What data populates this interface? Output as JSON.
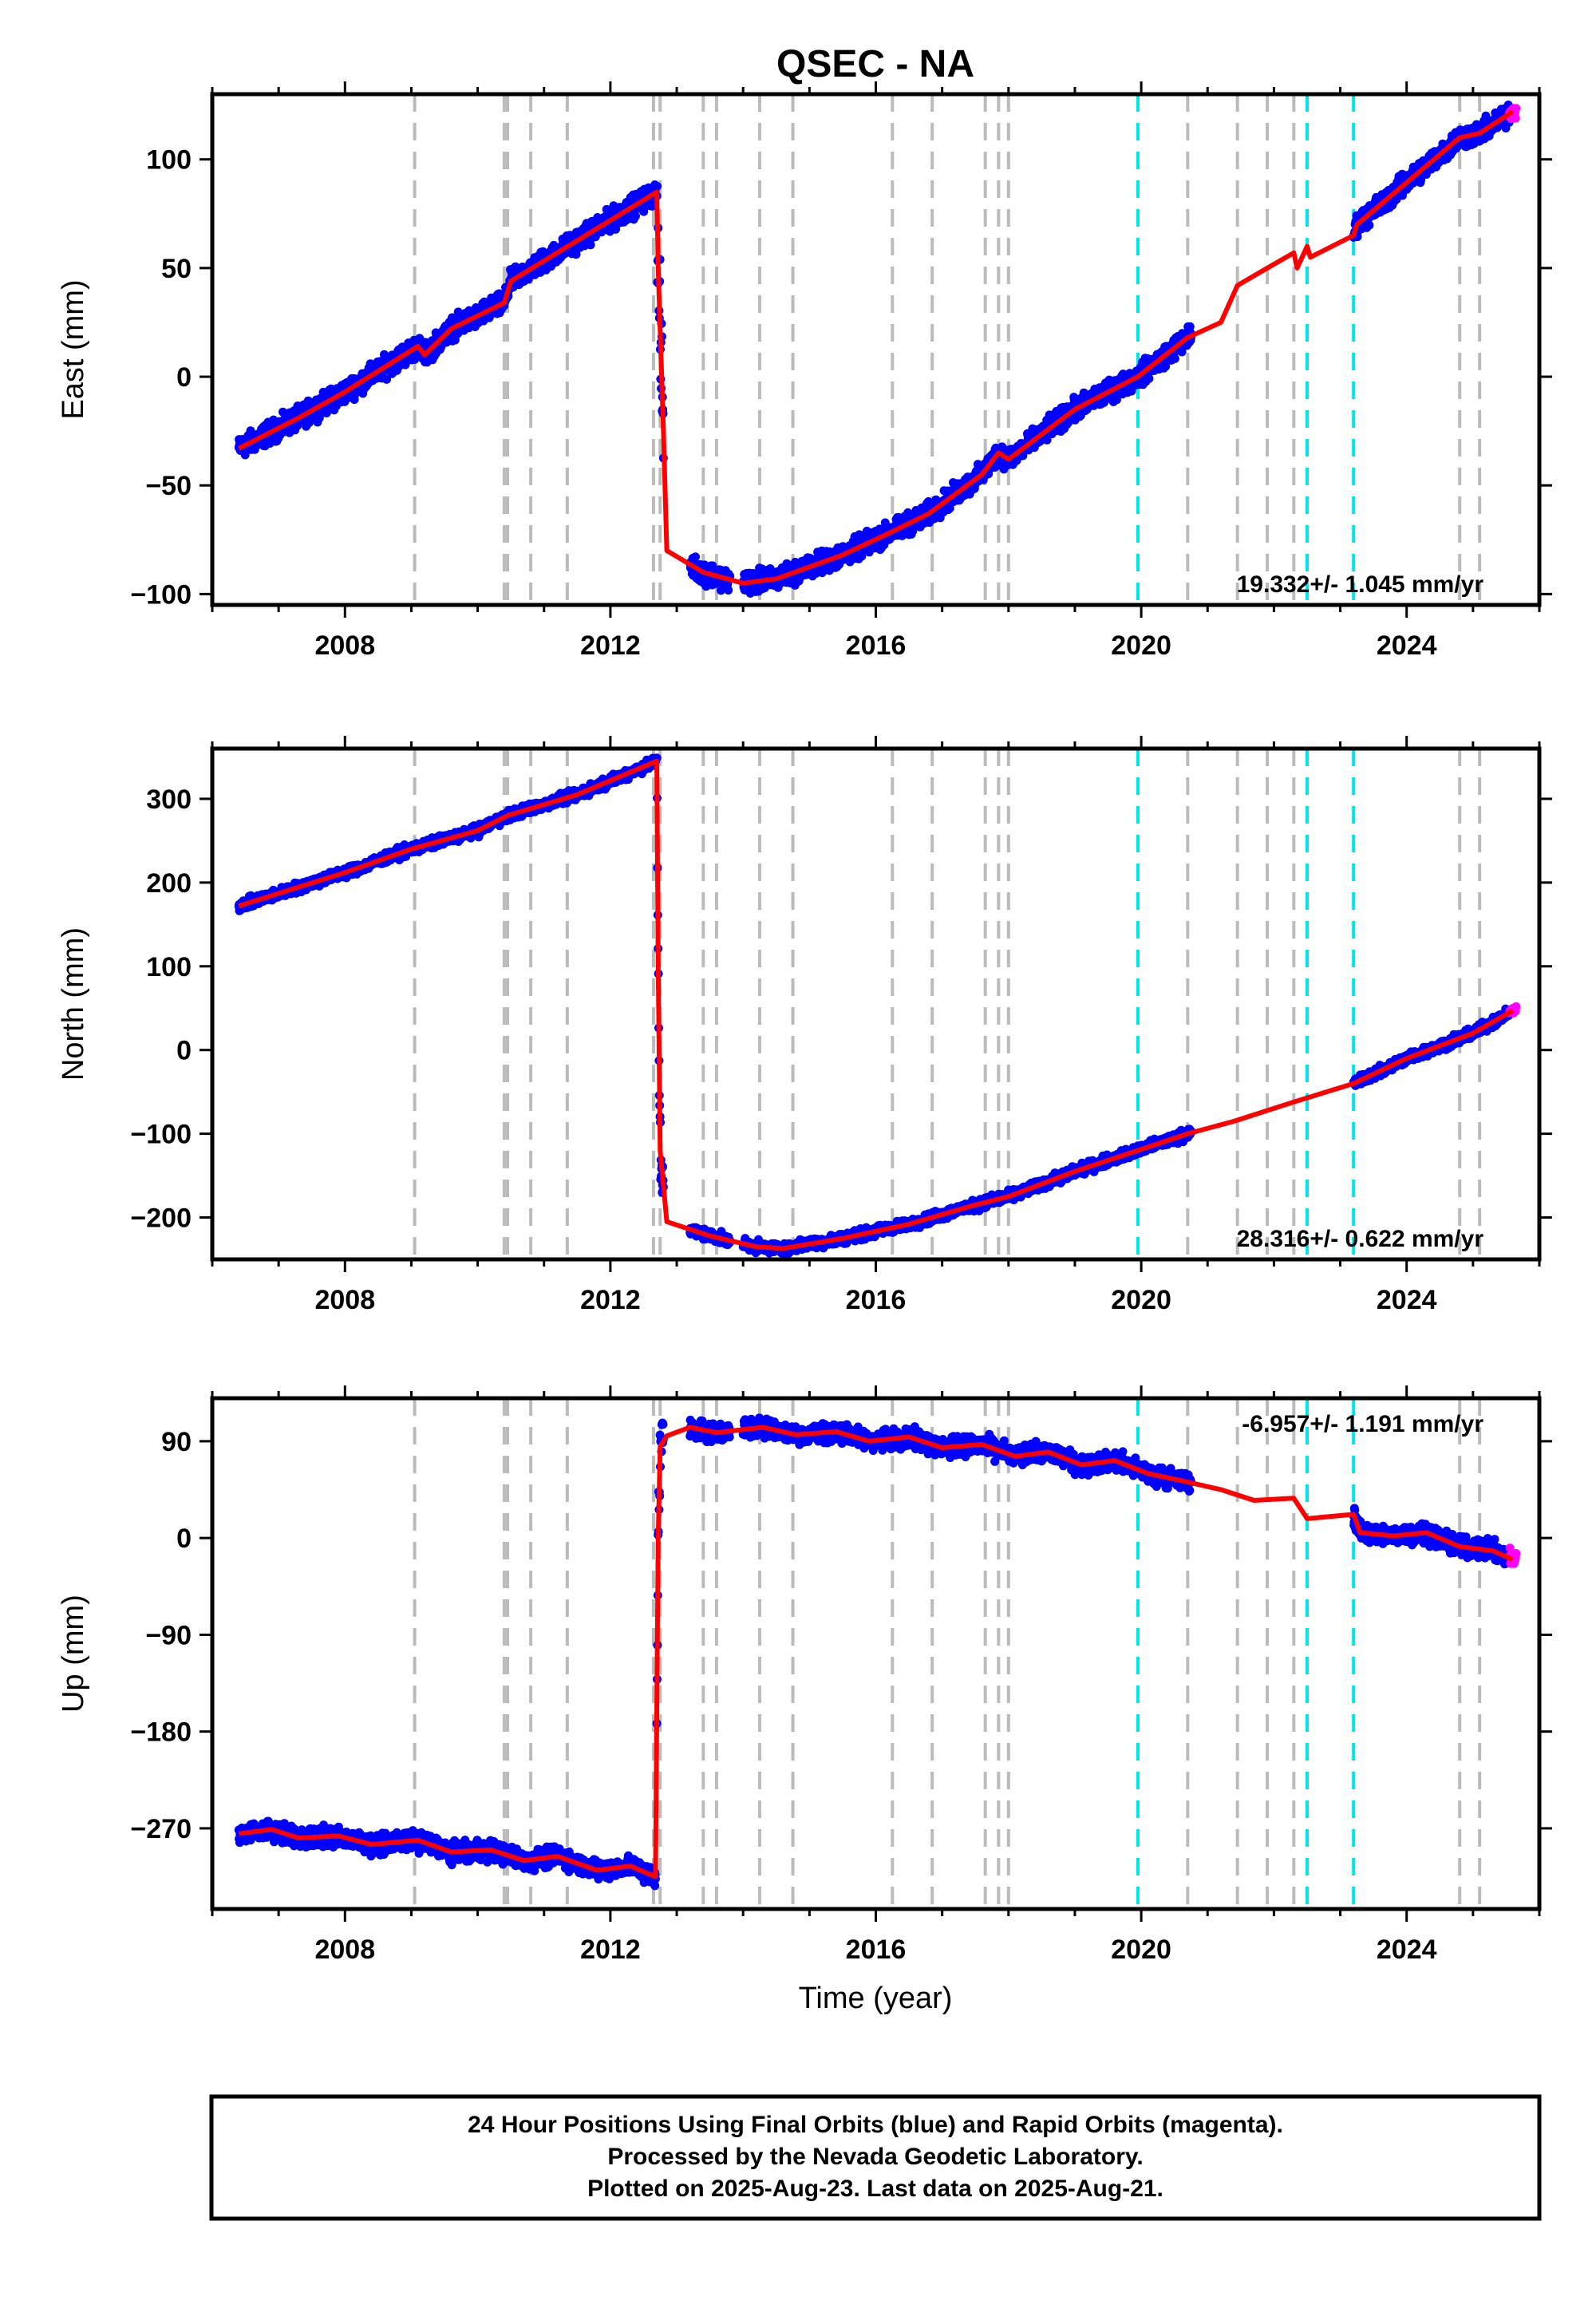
{
  "chart_data": {
    "type": "scatter",
    "title": "QSEC - NA",
    "xlabel": "Time (year)",
    "xlim": [
      2006.0,
      2026.0
    ],
    "x_ticks": [
      2008,
      2012,
      2016,
      2020,
      2024
    ],
    "x_tick_labels": [
      "2008",
      "2012",
      "2016",
      "2020",
      "2024"
    ],
    "gray_event_lines": [
      2009.05,
      2010.4,
      2010.45,
      2010.8,
      2011.35,
      2012.65,
      2012.75,
      2013.4,
      2013.6,
      2014.25,
      2014.75,
      2016.25,
      2016.85,
      2017.65,
      2017.85,
      2018.0,
      2020.7,
      2021.45,
      2021.9,
      2022.3,
      2024.8,
      2025.1
    ],
    "cyan_event_lines": [
      2019.95,
      2022.5,
      2023.2
    ],
    "colors": {
      "final_orbits": "#0000ff",
      "rapid_orbits": "#ff00ff",
      "model": "#ff0000",
      "gray_lines": "#bbbbbb",
      "cyan_lines": "#00e5e5"
    },
    "panels": [
      {
        "ylabel": "East (mm)",
        "ylim": [
          -105,
          130
        ],
        "y_ticks": [
          -100,
          -50,
          0,
          50,
          100
        ],
        "y_tick_labels": [
          "−100",
          "−50",
          "0",
          "50",
          "100"
        ],
        "rate": "19.332+/- 1.045 mm/yr",
        "rate_position": "bottom-right",
        "model": [
          [
            2006.4,
            -33
          ],
          [
            2007.3,
            -19
          ],
          [
            2008.0,
            -7
          ],
          [
            2009.1,
            14
          ],
          [
            2009.2,
            10
          ],
          [
            2009.6,
            22
          ],
          [
            2010.4,
            34
          ],
          [
            2010.5,
            44
          ],
          [
            2012.7,
            85
          ],
          [
            2012.72,
            50
          ],
          [
            2012.8,
            -25
          ],
          [
            2012.85,
            -80
          ],
          [
            2013.4,
            -90
          ],
          [
            2014.0,
            -95
          ],
          [
            2014.5,
            -93
          ],
          [
            2015.5,
            -82
          ],
          [
            2016.2,
            -72
          ],
          [
            2016.8,
            -63
          ],
          [
            2017.6,
            -45
          ],
          [
            2017.85,
            -35
          ],
          [
            2018.0,
            -38
          ],
          [
            2019.0,
            -15
          ],
          [
            2019.95,
            0
          ],
          [
            2020.7,
            18
          ],
          [
            2021.2,
            25
          ],
          [
            2021.45,
            42
          ],
          [
            2021.9,
            50
          ],
          [
            2022.3,
            57
          ],
          [
            2022.35,
            50
          ],
          [
            2022.5,
            60
          ],
          [
            2022.55,
            55
          ],
          [
            2023.2,
            65
          ],
          [
            2023.25,
            70
          ],
          [
            2024.8,
            110
          ],
          [
            2025.1,
            112
          ],
          [
            2025.6,
            122
          ]
        ],
        "blue_segments": [
          {
            "x0": 2006.4,
            "x1": 2012.68,
            "noise": 4
          },
          {
            "x0": 2012.7,
            "x1": 2012.8,
            "noise": 20
          },
          {
            "x0": 2013.2,
            "x1": 2013.8,
            "noise": 4
          },
          {
            "x0": 2014.0,
            "x1": 2020.75,
            "noise": 4
          },
          {
            "x0": 2023.2,
            "x1": 2025.55,
            "noise": 4
          }
        ],
        "magenta_segment": {
          "x0": 2025.55,
          "x1": 2025.65,
          "noise": 3
        }
      },
      {
        "ylabel": "North (mm)",
        "ylim": [
          -250,
          360
        ],
        "y_ticks": [
          -200,
          -100,
          0,
          100,
          200,
          300
        ],
        "y_tick_labels": [
          "−200",
          "−100",
          "0",
          "100",
          "200",
          "300"
        ],
        "rate": "28.316+/- 0.622 mm/yr",
        "rate_position": "bottom-right",
        "model": [
          [
            2006.4,
            172
          ],
          [
            2008.0,
            212
          ],
          [
            2009.0,
            240
          ],
          [
            2010.0,
            262
          ],
          [
            2010.45,
            280
          ],
          [
            2011.5,
            305
          ],
          [
            2012.7,
            345
          ],
          [
            2012.72,
            100
          ],
          [
            2012.75,
            -120
          ],
          [
            2012.85,
            -205
          ],
          [
            2013.5,
            -222
          ],
          [
            2014.2,
            -235
          ],
          [
            2014.6,
            -237
          ],
          [
            2015.5,
            -225
          ],
          [
            2016.5,
            -208
          ],
          [
            2017.5,
            -185
          ],
          [
            2018.0,
            -175
          ],
          [
            2019.0,
            -145
          ],
          [
            2019.95,
            -120
          ],
          [
            2020.7,
            -100
          ],
          [
            2021.4,
            -85
          ],
          [
            2022.3,
            -62
          ],
          [
            2023.2,
            -40
          ],
          [
            2024.0,
            -10
          ],
          [
            2025.0,
            20
          ],
          [
            2025.6,
            47
          ]
        ],
        "blue_segments": [
          {
            "x0": 2006.4,
            "x1": 2012.68,
            "noise": 5
          },
          {
            "x0": 2012.7,
            "x1": 2012.8,
            "noise": 30
          },
          {
            "x0": 2013.2,
            "x1": 2013.8,
            "noise": 5
          },
          {
            "x0": 2014.0,
            "x1": 2020.75,
            "noise": 5
          },
          {
            "x0": 2023.2,
            "x1": 2025.55,
            "noise": 5
          }
        ],
        "magenta_segment": {
          "x0": 2025.55,
          "x1": 2025.65,
          "noise": 4
        }
      },
      {
        "ylabel": "Up (mm)",
        "ylim": [
          -345,
          130
        ],
        "y_ticks": [
          -270,
          -180,
          -90,
          0,
          90
        ],
        "y_tick_labels": [
          "−270",
          "−180",
          "−90",
          "0",
          "90"
        ],
        "rate": "-6.957+/- 1.191 mm/yr",
        "rate_position": "top-right",
        "model": [
          [
            2006.4,
            -275
          ],
          [
            2006.9,
            -271
          ],
          [
            2007.3,
            -279
          ],
          [
            2007.9,
            -277
          ],
          [
            2008.4,
            -285
          ],
          [
            2009.1,
            -281
          ],
          [
            2009.6,
            -292
          ],
          [
            2010.2,
            -290
          ],
          [
            2010.7,
            -300
          ],
          [
            2011.2,
            -296
          ],
          [
            2011.8,
            -309
          ],
          [
            2012.3,
            -305
          ],
          [
            2012.68,
            -315
          ],
          [
            2012.72,
            0
          ],
          [
            2012.75,
            85
          ],
          [
            2012.85,
            95
          ],
          [
            2013.2,
            103
          ],
          [
            2013.6,
            98
          ],
          [
            2014.3,
            103
          ],
          [
            2014.8,
            96
          ],
          [
            2015.4,
            99
          ],
          [
            2015.9,
            90
          ],
          [
            2016.5,
            94
          ],
          [
            2017.0,
            84
          ],
          [
            2017.6,
            87
          ],
          [
            2018.1,
            76
          ],
          [
            2018.6,
            80
          ],
          [
            2019.1,
            68
          ],
          [
            2019.6,
            72
          ],
          [
            2020.1,
            60
          ],
          [
            2020.7,
            52
          ],
          [
            2021.2,
            45
          ],
          [
            2021.7,
            35
          ],
          [
            2022.3,
            37
          ],
          [
            2022.5,
            18
          ],
          [
            2023.2,
            22
          ],
          [
            2023.3,
            5
          ],
          [
            2023.8,
            2
          ],
          [
            2024.3,
            5
          ],
          [
            2024.8,
            -8
          ],
          [
            2025.3,
            -12
          ],
          [
            2025.6,
            -20
          ]
        ],
        "blue_segments": [
          {
            "x0": 2006.4,
            "x1": 2012.68,
            "noise": 7
          },
          {
            "x0": 2012.7,
            "x1": 2012.8,
            "noise": 25
          },
          {
            "x0": 2013.2,
            "x1": 2013.8,
            "noise": 7
          },
          {
            "x0": 2014.0,
            "x1": 2020.75,
            "noise": 7
          },
          {
            "x0": 2023.2,
            "x1": 2025.55,
            "noise": 7
          }
        ],
        "magenta_segment": {
          "x0": 2025.55,
          "x1": 2025.65,
          "noise": 7
        }
      }
    ]
  },
  "footer": {
    "line1": "24 Hour Positions Using Final Orbits (blue) and Rapid Orbits (magenta).",
    "line2": "Processed by the Nevada Geodetic Laboratory.",
    "line3": "Plotted on 2025-Aug-23. Last data on 2025-Aug-21."
  }
}
